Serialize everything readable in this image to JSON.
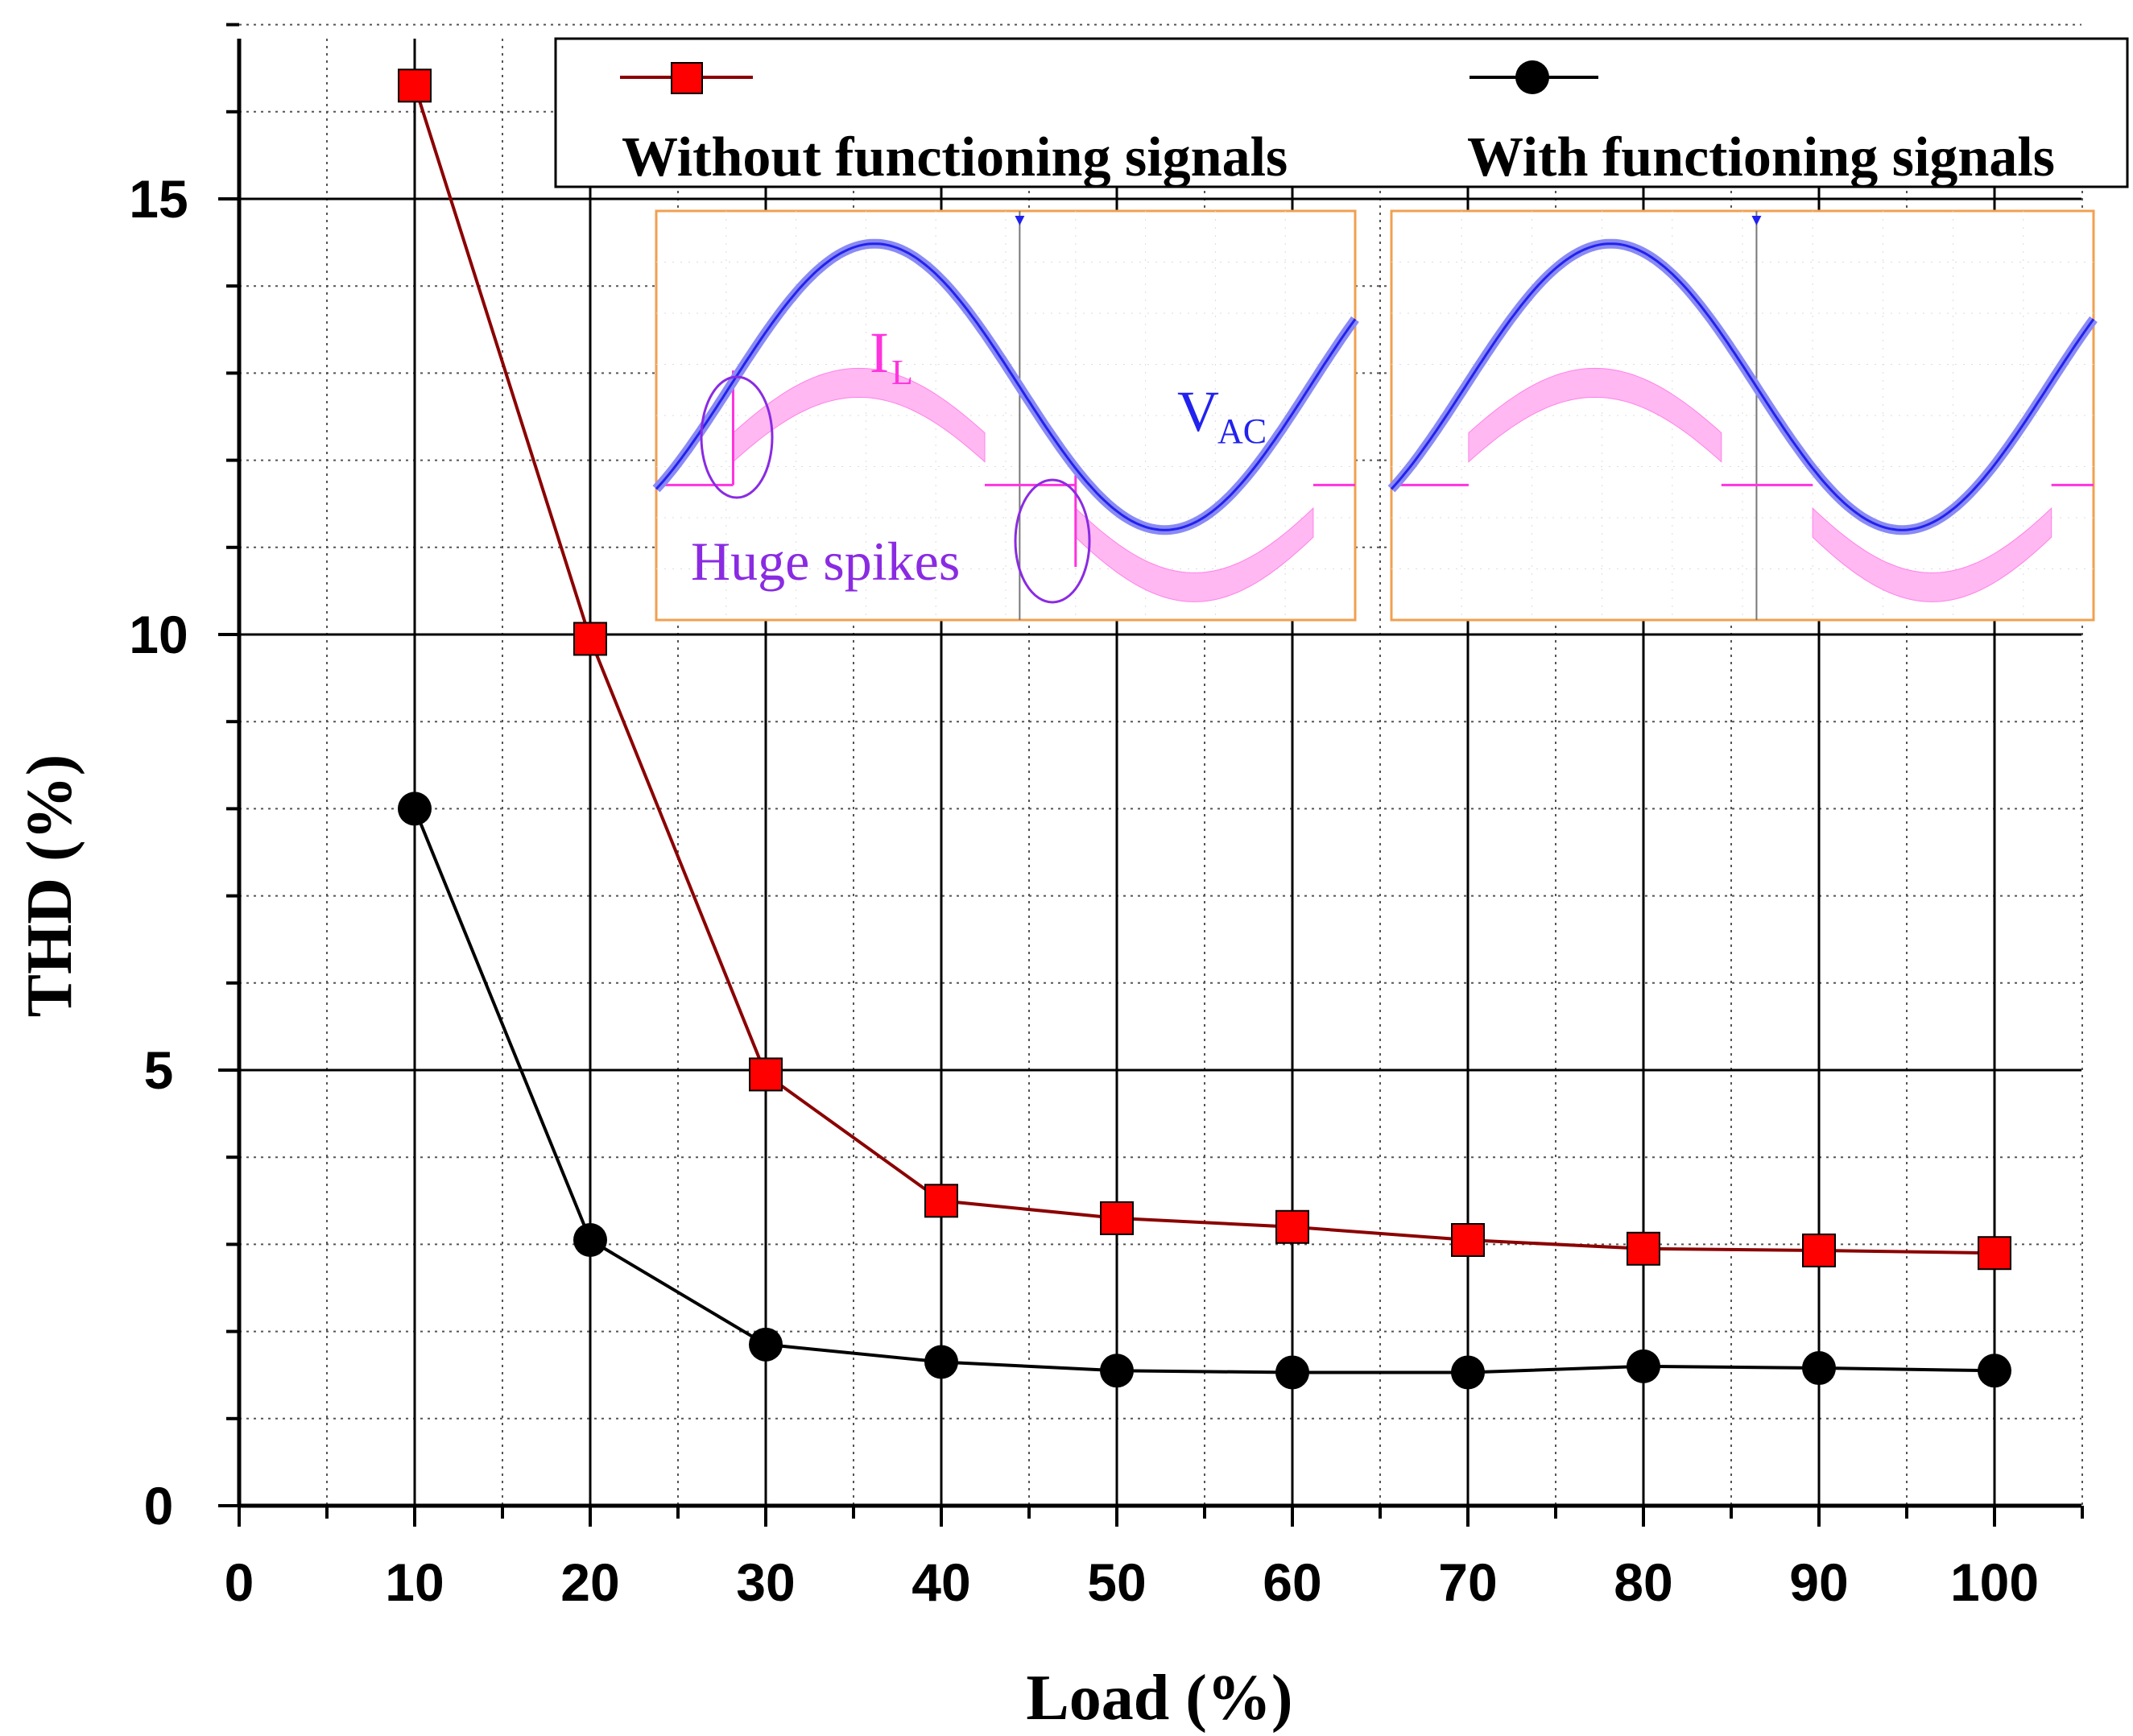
{
  "chart_data": {
    "type": "line",
    "title": "",
    "xlabel": "Load (%)",
    "ylabel": "THD (%)",
    "xlim": [
      0,
      105
    ],
    "ylim": [
      0,
      17
    ],
    "x_ticks": [
      0,
      10,
      20,
      30,
      40,
      50,
      60,
      70,
      80,
      90,
      100
    ],
    "y_ticks": [
      0,
      5,
      10,
      15
    ],
    "grid": true,
    "legend_position": "top",
    "x": [
      10,
      20,
      30,
      40,
      50,
      60,
      70,
      80,
      90,
      100
    ],
    "series": [
      {
        "name": "Without functioning signals",
        "marker": "square",
        "color": "#ff0000",
        "line_color": "#8b0000",
        "values": [
          16.3,
          9.95,
          4.95,
          3.5,
          3.3,
          3.2,
          3.05,
          2.95,
          2.93,
          2.9
        ]
      },
      {
        "name": "With functioning signals",
        "marker": "circle",
        "color": "#000000",
        "line_color": "#000000",
        "values": [
          8.0,
          3.05,
          1.85,
          1.65,
          1.55,
          1.53,
          1.53,
          1.6,
          1.58,
          1.55
        ]
      }
    ],
    "inset": {
      "current_label": "I",
      "current_subscript": "L",
      "voltage_label": "V",
      "voltage_subscript": "AC",
      "annotation": "Huge spikes",
      "current_color": "#ff33dd",
      "voltage_color": "#2222ee",
      "annotation_color": "#8a2be2",
      "frame_color": "#f0a050"
    }
  }
}
